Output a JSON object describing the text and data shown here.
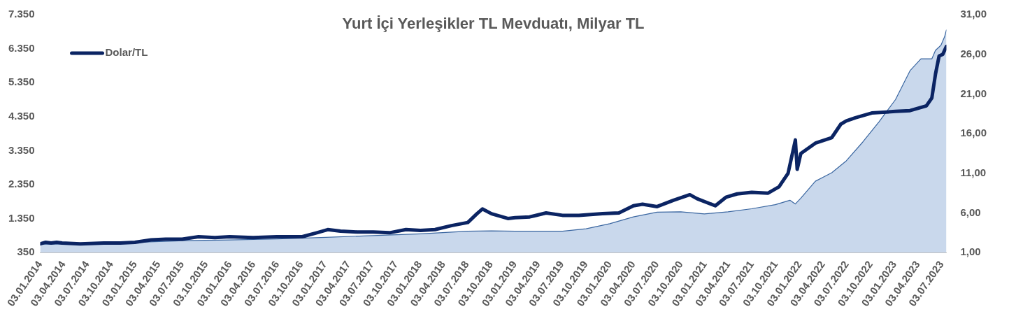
{
  "chart_data": {
    "type": "area",
    "title": "Yurt İçi Yerleşikler TL Mevduatı, Milyar TL",
    "legend": "top left",
    "grid": false,
    "marker": "none",
    "xlim": [
      "2014-01-03",
      "2023-07-21"
    ],
    "xticks": [
      {
        "value": "2014-01-03",
        "label": "03.01.2014"
      },
      {
        "value": "2014-04-03",
        "label": "03.04.2014"
      },
      {
        "value": "2014-07-03",
        "label": "03.07.2014"
      },
      {
        "value": "2014-10-03",
        "label": "03.10.2014"
      },
      {
        "value": "2015-01-03",
        "label": "03.01.2015"
      },
      {
        "value": "2015-04-03",
        "label": "03.04.2015"
      },
      {
        "value": "2015-07-03",
        "label": "03.07.2015"
      },
      {
        "value": "2015-10-03",
        "label": "03.10.2015"
      },
      {
        "value": "2016-01-03",
        "label": "03.01.2016"
      },
      {
        "value": "2016-04-03",
        "label": "03.04.2016"
      },
      {
        "value": "2016-07-03",
        "label": "03.07.2016"
      },
      {
        "value": "2016-10-03",
        "label": "03.10.2016"
      },
      {
        "value": "2017-01-03",
        "label": "03.01.2017"
      },
      {
        "value": "2017-04-03",
        "label": "03.04.2017"
      },
      {
        "value": "2017-07-03",
        "label": "03.07.2017"
      },
      {
        "value": "2017-10-03",
        "label": "03.10.2017"
      },
      {
        "value": "2018-01-03",
        "label": "03.01.2018"
      },
      {
        "value": "2018-04-03",
        "label": "03.04.2018"
      },
      {
        "value": "2018-07-03",
        "label": "03.07.2018"
      },
      {
        "value": "2018-10-03",
        "label": "03.10.2018"
      },
      {
        "value": "2019-01-03",
        "label": "03.01.2019"
      },
      {
        "value": "2019-04-03",
        "label": "03.04.2019"
      },
      {
        "value": "2019-07-03",
        "label": "03.07.2019"
      },
      {
        "value": "2019-10-03",
        "label": "03.10.2019"
      },
      {
        "value": "2020-01-03",
        "label": "03.01.2020"
      },
      {
        "value": "2020-04-03",
        "label": "03.04.2020"
      },
      {
        "value": "2020-07-03",
        "label": "03.07.2020"
      },
      {
        "value": "2020-10-03",
        "label": "03.10.2020"
      },
      {
        "value": "2021-01-03",
        "label": "03.01.2021"
      },
      {
        "value": "2021-04-03",
        "label": "03.04.2021"
      },
      {
        "value": "2021-07-03",
        "label": "03.07.2021"
      },
      {
        "value": "2021-10-03",
        "label": "03.10.2021"
      },
      {
        "value": "2022-01-03",
        "label": "03.01.2022"
      },
      {
        "value": "2022-04-03",
        "label": "03.04.2022"
      },
      {
        "value": "2022-07-03",
        "label": "03.07.2022"
      },
      {
        "value": "2022-10-03",
        "label": "03.10.2022"
      },
      {
        "value": "2023-01-03",
        "label": "03.01.2023"
      },
      {
        "value": "2023-04-03",
        "label": "03.04.2023"
      },
      {
        "value": "2023-07-03",
        "label": "03.07.2023"
      }
    ],
    "ylim": [
      350,
      7350
    ],
    "yticks": [
      {
        "value": 350,
        "label": "350"
      },
      {
        "value": 1350,
        "label": "1.350"
      },
      {
        "value": 2350,
        "label": "2.350"
      },
      {
        "value": 3350,
        "label": "3.350"
      },
      {
        "value": 4350,
        "label": "4.350"
      },
      {
        "value": 5350,
        "label": "5.350"
      },
      {
        "value": 6350,
        "label": "6.350"
      },
      {
        "value": 7350,
        "label": "7.350"
      }
    ],
    "y2lim": [
      1,
      31
    ],
    "y2ticks": [
      {
        "value": 1,
        "label": "1,00"
      },
      {
        "value": 6,
        "label": "6,00"
      },
      {
        "value": 11,
        "label": "11,00"
      },
      {
        "value": 16,
        "label": "16,00"
      },
      {
        "value": 21,
        "label": "21,00"
      },
      {
        "value": 26,
        "label": "26,00"
      },
      {
        "value": 31,
        "label": "31,00"
      }
    ],
    "series": [
      {
        "color": "#c9d8ec",
        "x": [
          "2014-01-03",
          "2014-07-04",
          "2015-01-02",
          "2015-07-03",
          "2016-01-01",
          "2016-07-01",
          "2017-01-06",
          "2017-07-07",
          "2018-01-05",
          "2018-07-06",
          "2018-10-05",
          "2019-01-04",
          "2019-07-05",
          "2019-10-04",
          "2020-01-03",
          "2020-04-03",
          "2020-07-03",
          "2020-10-02",
          "2021-01-01",
          "2021-04-02",
          "2021-07-02",
          "2021-10-01",
          "2021-11-26",
          "2021-12-17",
          "2022-01-07",
          "2022-03-04",
          "2022-05-06",
          "2022-07-01",
          "2022-09-02",
          "2022-11-04",
          "2023-01-06",
          "2023-03-03",
          "2023-04-14",
          "2023-05-26",
          "2023-06-09",
          "2023-06-30",
          "2023-07-14",
          "2023-07-21"
        ],
        "values": [
          600,
          610,
          650,
          700,
          720,
          750,
          800,
          850,
          900,
          980,
          990,
          980,
          980,
          1050,
          1200,
          1400,
          1540,
          1550,
          1490,
          1550,
          1640,
          1760,
          1890,
          1780,
          1950,
          2450,
          2700,
          3050,
          3600,
          4200,
          4850,
          5700,
          6050,
          6050,
          6300,
          6450,
          6700,
          6900
        ]
      },
      {
        "type": "line",
        "axis": "y2",
        "name": "Dolar/TL",
        "color": "#0b2463",
        "x": [
          "2014-01-03",
          "2014-01-24",
          "2014-02-14",
          "2014-03-07",
          "2014-03-28",
          "2014-06-06",
          "2014-09-05",
          "2014-11-07",
          "2015-01-02",
          "2015-03-06",
          "2015-05-01",
          "2015-07-03",
          "2015-09-04",
          "2015-11-06",
          "2016-01-01",
          "2016-04-01",
          "2016-07-01",
          "2016-10-07",
          "2016-12-02",
          "2017-01-13",
          "2017-03-03",
          "2017-05-05",
          "2017-07-07",
          "2017-09-08",
          "2017-11-10",
          "2018-01-05",
          "2018-03-02",
          "2018-05-04",
          "2018-07-06",
          "2018-08-10",
          "2018-08-31",
          "2018-10-05",
          "2018-12-07",
          "2019-01-04",
          "2019-03-01",
          "2019-05-03",
          "2019-07-05",
          "2019-09-06",
          "2019-12-06",
          "2020-02-07",
          "2020-04-03",
          "2020-05-08",
          "2020-07-03",
          "2020-09-04",
          "2020-11-06",
          "2020-12-04",
          "2021-02-12",
          "2021-03-26",
          "2021-05-07",
          "2021-07-02",
          "2021-09-03",
          "2021-10-15",
          "2021-11-19",
          "2021-12-17",
          "2021-12-24",
          "2022-01-07",
          "2022-03-04",
          "2022-05-06",
          "2022-06-10",
          "2022-07-01",
          "2022-08-05",
          "2022-10-07",
          "2023-01-06",
          "2023-03-03",
          "2023-05-05",
          "2023-05-26",
          "2023-06-09",
          "2023-06-23",
          "2023-07-07",
          "2023-07-21"
        ],
        "values": [
          2.1,
          2.3,
          2.2,
          2.3,
          2.2,
          2.1,
          2.2,
          2.2,
          2.3,
          2.6,
          2.7,
          2.7,
          3.0,
          2.9,
          3.0,
          2.9,
          3.0,
          3.0,
          3.5,
          3.9,
          3.7,
          3.6,
          3.6,
          3.5,
          3.9,
          3.8,
          3.9,
          4.4,
          4.8,
          5.9,
          6.5,
          5.9,
          5.3,
          5.4,
          5.5,
          6.0,
          5.7,
          5.7,
          5.9,
          6.0,
          6.9,
          7.1,
          6.8,
          7.6,
          8.3,
          7.8,
          6.9,
          8.0,
          8.4,
          8.6,
          8.5,
          9.3,
          11.0,
          15.2,
          11.5,
          13.5,
          14.8,
          15.5,
          17.2,
          17.6,
          18.0,
          18.6,
          18.8,
          18.9,
          19.5,
          20.5,
          23.5,
          25.8,
          26.0,
          27.0
        ]
      }
    ]
  }
}
